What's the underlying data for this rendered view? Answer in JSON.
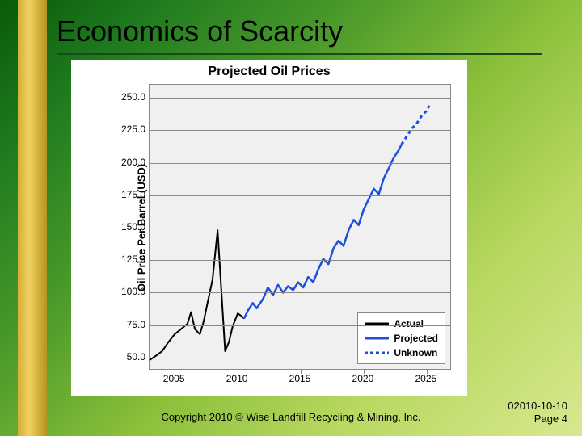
{
  "slide": {
    "title": "Economics of Scarcity",
    "background_gradient": [
      "#0a5a0a",
      "#1e7a1e",
      "#4a9a2a",
      "#8abf3a",
      "#b8d860",
      "#d8e890"
    ],
    "gold_bar_colors": [
      "#d4af37",
      "#f0d060",
      "#b8941f"
    ],
    "title_fontsize": 36,
    "title_color": "#000000"
  },
  "chart": {
    "type": "line",
    "title": "Projected Oil Prices",
    "title_fontsize": 16,
    "ylabel": "Oil Price Per Barrel (USD)",
    "label_fontsize": 13,
    "background_color": "#f0f0f0",
    "panel_bg": "#ffffff",
    "grid_color": "#888888",
    "xlim": [
      2003,
      2027
    ],
    "ylim": [
      40,
      260
    ],
    "yticks": [
      50,
      75,
      100,
      125,
      150,
      175,
      200,
      225,
      250
    ],
    "ytick_labels": [
      "50.0",
      "75.0",
      "100.0",
      "125.0",
      "150.0",
      "175.0",
      "200.0",
      "225.0",
      "250.0"
    ],
    "xtick_labels": [
      "2005",
      "2010",
      "2015",
      "2020",
      "2025"
    ],
    "xtick_positions": [
      2005,
      2010,
      2015,
      2020,
      2025
    ],
    "series": {
      "actual": {
        "label": "Actual",
        "color": "#000000",
        "line_width": 2,
        "dash": "none",
        "points": [
          [
            2003.0,
            48
          ],
          [
            2003.6,
            52
          ],
          [
            2004.0,
            55
          ],
          [
            2004.5,
            62
          ],
          [
            2005.0,
            68
          ],
          [
            2005.5,
            72
          ],
          [
            2006.0,
            76
          ],
          [
            2006.3,
            85
          ],
          [
            2006.6,
            72
          ],
          [
            2007.0,
            68
          ],
          [
            2007.3,
            78
          ],
          [
            2007.6,
            92
          ],
          [
            2008.0,
            110
          ],
          [
            2008.4,
            148
          ],
          [
            2008.7,
            102
          ],
          [
            2009.0,
            55
          ],
          [
            2009.3,
            62
          ],
          [
            2009.6,
            74
          ],
          [
            2010.0,
            84
          ],
          [
            2010.3,
            82
          ],
          [
            2010.5,
            80
          ]
        ]
      },
      "projected": {
        "label": "Projected",
        "color": "#1f4fd8",
        "line_width": 2.5,
        "dash": "none",
        "points": [
          [
            2010.5,
            80
          ],
          [
            2010.8,
            86
          ],
          [
            2011.2,
            92
          ],
          [
            2011.5,
            88
          ],
          [
            2012.0,
            95
          ],
          [
            2012.4,
            104
          ],
          [
            2012.8,
            98
          ],
          [
            2013.2,
            106
          ],
          [
            2013.6,
            100
          ],
          [
            2014.0,
            105
          ],
          [
            2014.4,
            102
          ],
          [
            2014.8,
            108
          ],
          [
            2015.2,
            104
          ],
          [
            2015.6,
            112
          ],
          [
            2016.0,
            108
          ],
          [
            2016.4,
            118
          ],
          [
            2016.8,
            126
          ],
          [
            2017.2,
            122
          ],
          [
            2017.6,
            134
          ],
          [
            2018.0,
            140
          ],
          [
            2018.4,
            136
          ],
          [
            2018.8,
            148
          ],
          [
            2019.2,
            156
          ],
          [
            2019.6,
            152
          ],
          [
            2020.0,
            164
          ],
          [
            2020.4,
            172
          ],
          [
            2020.8,
            180
          ],
          [
            2021.2,
            176
          ],
          [
            2021.6,
            188
          ],
          [
            2022.0,
            196
          ],
          [
            2022.4,
            204
          ],
          [
            2022.8,
            210
          ],
          [
            2023.0,
            214
          ]
        ]
      },
      "unknown": {
        "label": "Unknown",
        "color": "#1f4fd8",
        "line_width": 3,
        "dash": "4,4",
        "points": [
          [
            2023.0,
            214
          ],
          [
            2023.4,
            220
          ],
          [
            2023.8,
            226
          ],
          [
            2024.2,
            230
          ],
          [
            2024.6,
            236
          ],
          [
            2025.0,
            240
          ],
          [
            2025.2,
            244
          ]
        ]
      }
    },
    "legend": {
      "position": "bottom-right",
      "border_color": "#888888",
      "bg": "#ffffff",
      "items": [
        "actual",
        "projected",
        "unknown"
      ]
    }
  },
  "footer": {
    "copyright": "Copyright 2010 © Wise Landfill Recycling & Mining, Inc.",
    "date": "02010-10-10",
    "page": "Page 4"
  }
}
